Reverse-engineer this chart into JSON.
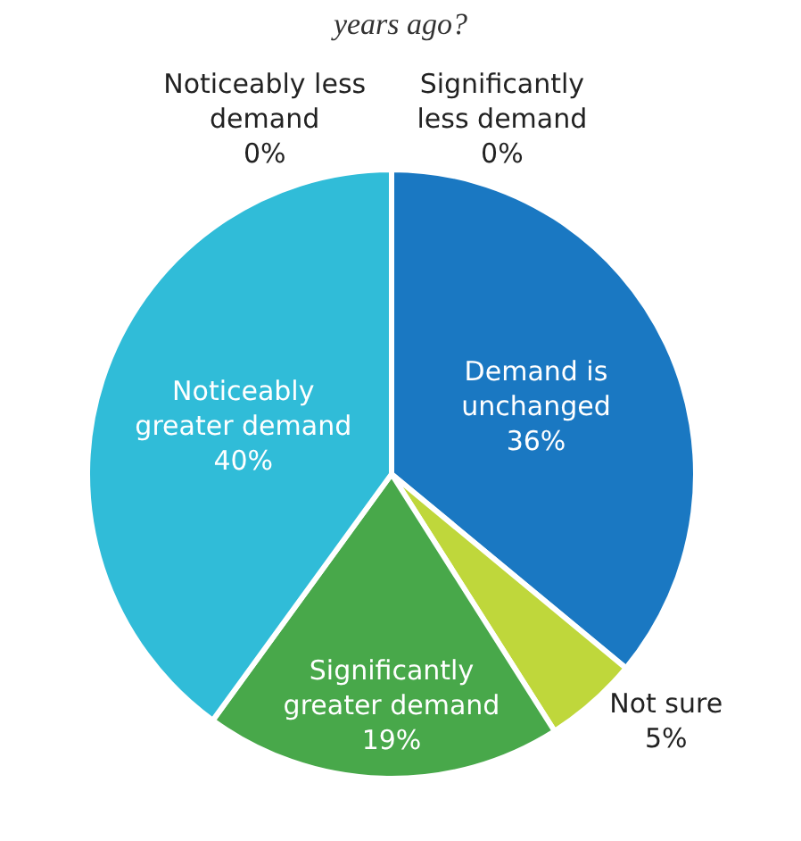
{
  "chart_data": {
    "type": "pie",
    "title": "years ago?",
    "categories": [
      "Significantly less demand",
      "Demand is unchanged",
      "Not sure",
      "Significantly greater demand",
      "Noticeably greater demand",
      "Noticeably less demand"
    ],
    "values": [
      0,
      36,
      5,
      19,
      40,
      0
    ],
    "value_labels": [
      "0%",
      "36%",
      "5%",
      "19%",
      "40%",
      "0%"
    ],
    "colors": [
      "#1a78c2",
      "#1a78c2",
      "#bfd73b",
      "#48a84a",
      "#30bcd8",
      "#30bcd8"
    ],
    "legend": false
  }
}
